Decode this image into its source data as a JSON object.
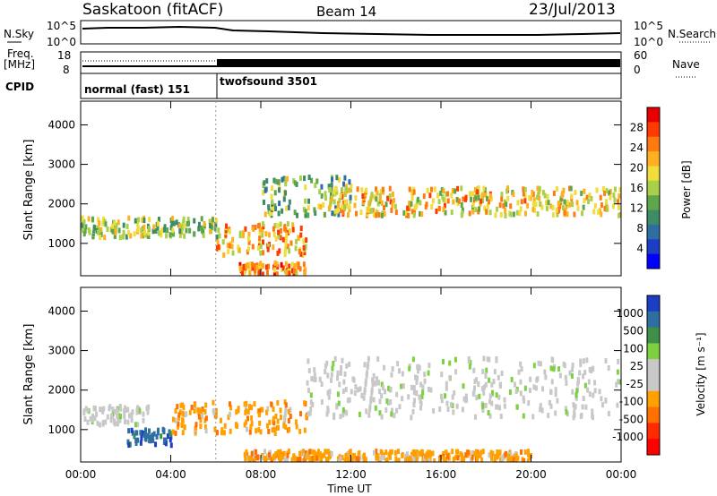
{
  "header": {
    "title": "Saskatoon (fitACF)",
    "beam": "Beam 14",
    "date": "23/Jul/2013"
  },
  "colors": {
    "power_scale": [
      "#0000ff",
      "#1c3ec4",
      "#2e6ea0",
      "#3d8c66",
      "#5ea64a",
      "#a8d048",
      "#f0dc3a",
      "#ffb020",
      "#ff7a10",
      "#ff3a00",
      "#e80000"
    ],
    "velocity_scale": [
      "#1c3ec4",
      "#2e6ea0",
      "#3f8f48",
      "#7dd040",
      "#c8c8c8",
      "#c8c8c8",
      "#ffa000",
      "#ff7000",
      "#ff2a00",
      "#ff0000"
    ]
  },
  "status": {
    "nsky_label": "N.Sky",
    "nsky_ticks": [
      "10^5",
      "10^0"
    ],
    "nsearch_label": "N.Search",
    "nsearch_ticks": [
      "10^5",
      "10^0"
    ],
    "freq_label": "Freq.",
    "freq_unit": "[MHz]",
    "freq_ticks": [
      "18",
      "8"
    ],
    "nave_label": "Nave",
    "nave_ticks": [
      "60",
      "0"
    ],
    "cpid_label": "CPID",
    "cpid_segments": [
      {
        "name": "normal (fast) 151",
        "start_hour": 0,
        "end_hour": 6
      },
      {
        "name": "twofsound 3501",
        "start_hour": 6,
        "end_hour": 24
      }
    ]
  },
  "chart_data": [
    {
      "type": "heatmap",
      "name": "power",
      "ylabel": "Slant Range [km]",
      "xlim": [
        0,
        24
      ],
      "ylim": [
        180,
        4600
      ],
      "yticks": [
        "1000",
        "2000",
        "3000",
        "4000"
      ],
      "colorbar_label": "Power [dB]",
      "colorbar_ticks": [
        "4",
        "8",
        "12",
        "16",
        "20",
        "24",
        "28"
      ],
      "colorbar_range": [
        0,
        32
      ],
      "echo_bands": [
        {
          "t0": 0,
          "t1": 6,
          "r_lo": 1150,
          "r_hi": 1650,
          "level": 16
        },
        {
          "t0": 6,
          "t1": 10,
          "r_lo": 700,
          "r_hi": 1500,
          "level": 22
        },
        {
          "t0": 8,
          "t1": 12,
          "r_lo": 1700,
          "r_hi": 2700,
          "level": 14
        },
        {
          "t0": 11,
          "t1": 24,
          "r_lo": 1700,
          "r_hi": 2400,
          "level": 20
        },
        {
          "t0": 7,
          "t1": 10,
          "r_lo": 200,
          "r_hi": 500,
          "level": 24
        }
      ]
    },
    {
      "type": "heatmap",
      "name": "velocity",
      "ylabel": "Slant Range [km]",
      "xlabel": "Time UT",
      "xlim": [
        0,
        24
      ],
      "ylim": [
        180,
        4600
      ],
      "yticks": [
        "1000",
        "2000",
        "3000",
        "4000"
      ],
      "xticks": [
        "00:00",
        "04:00",
        "08:00",
        "12:00",
        "16:00",
        "20:00",
        "00:00"
      ],
      "colorbar_label": "Velocity [m s⁻¹]",
      "colorbar_ticks": [
        "1000",
        "500",
        "100",
        "25",
        "-25",
        "-100",
        "-500",
        "-1000"
      ],
      "echo_bands": [
        {
          "t0": 0,
          "t1": 3,
          "r_lo": 1100,
          "r_hi": 1600,
          "level": "25"
        },
        {
          "t0": 2,
          "t1": 4,
          "r_lo": 600,
          "r_hi": 1000,
          "level": "500"
        },
        {
          "t0": 4,
          "t1": 10,
          "r_lo": 900,
          "r_hi": 1700,
          "level": "-100"
        },
        {
          "t0": 10,
          "t1": 24,
          "r_lo": 1300,
          "r_hi": 2800,
          "level": "25"
        },
        {
          "t0": 7,
          "t1": 20,
          "r_lo": 200,
          "r_hi": 450,
          "level": "-100"
        }
      ]
    }
  ]
}
